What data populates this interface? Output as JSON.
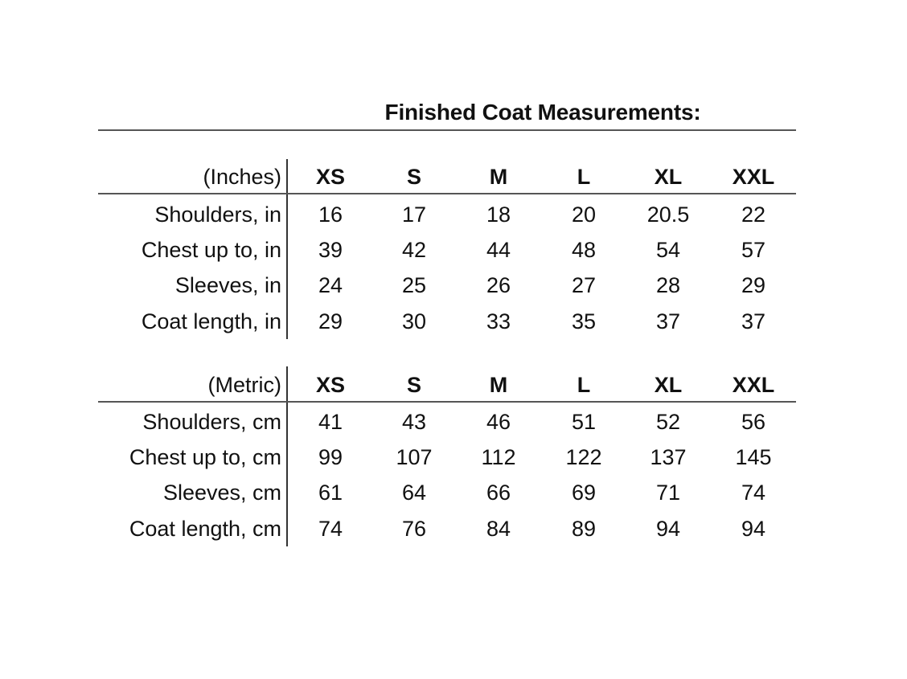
{
  "title": "Finished Coat Measurements:",
  "sizes": [
    "XS",
    "S",
    "M",
    "L",
    "XL",
    "XXL"
  ],
  "inches": {
    "unit_label": "(Inches)",
    "rows": [
      {
        "label": "Shoulders, in",
        "values": [
          "16",
          "17",
          "18",
          "20",
          "20.5",
          "22"
        ]
      },
      {
        "label": "Chest up to, in",
        "values": [
          "39",
          "42",
          "44",
          "48",
          "54",
          "57"
        ]
      },
      {
        "label": "Sleeves, in",
        "values": [
          "24",
          "25",
          "26",
          "27",
          "28",
          "29"
        ]
      },
      {
        "label": "Coat length, in",
        "values": [
          "29",
          "30",
          "33",
          "35",
          "37",
          "37"
        ]
      }
    ]
  },
  "metric": {
    "unit_label": "(Metric)",
    "rows": [
      {
        "label": "Shoulders, cm",
        "values": [
          "41",
          "43",
          "46",
          "51",
          "52",
          "56"
        ]
      },
      {
        "label": "Chest up to, cm",
        "values": [
          "99",
          "107",
          "112",
          "122",
          "137",
          "145"
        ]
      },
      {
        "label": "Sleeves, cm",
        "values": [
          "61",
          "64",
          "66",
          "69",
          "71",
          "74"
        ]
      },
      {
        "label": "Coat length, cm",
        "values": [
          "74",
          "76",
          "84",
          "89",
          "94",
          "94"
        ]
      }
    ]
  }
}
